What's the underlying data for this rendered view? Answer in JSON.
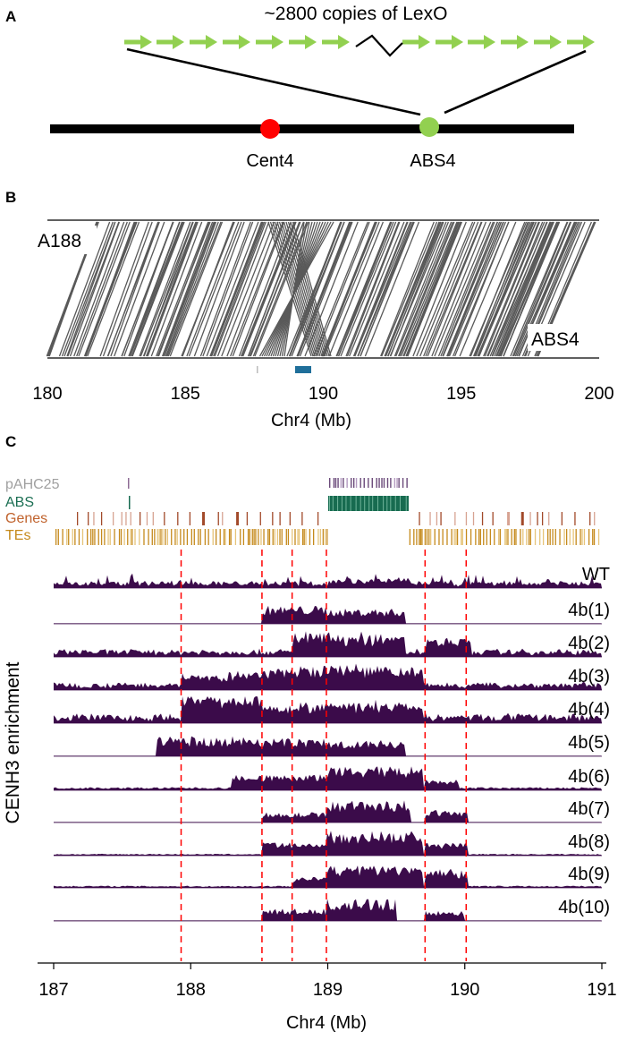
{
  "panel_a": {
    "label": "A",
    "copies_text": "~2800 copies of LexO",
    "cent_label": "Cent4",
    "abs_label": "ABS4",
    "colors": {
      "arrow": "#92d050",
      "cent": "#ff0000",
      "abs": "#92d050",
      "chrom": "#000000"
    }
  },
  "panel_b": {
    "label": "B",
    "top_label": "A188",
    "bottom_label": "ABS4",
    "axis_title": "Chr4 (Mb)",
    "ticks": [
      180,
      185,
      190,
      195,
      200
    ],
    "line_color": "#595959",
    "marker_color": "#1f6f9a"
  },
  "panel_c": {
    "label": "C",
    "tracks": [
      {
        "name": "pAHC25",
        "color": "#a0a0a0"
      },
      {
        "name": "ABS",
        "color": "#1a6e52"
      },
      {
        "name": "Genes",
        "color": "#c0622c"
      },
      {
        "name": "TEs",
        "color": "#c58a1c"
      }
    ],
    "samples": [
      "WT",
      "4b(1)",
      "4b(2)",
      "4b(3)",
      "4b(4)",
      "4b(5)",
      "4b(6)",
      "4b(7)",
      "4b(8)",
      "4b(9)",
      "4b(10)"
    ],
    "ylabel": "CENH3 enrichment",
    "xlabel": "Chr4 (Mb)",
    "ticks": [
      187,
      188,
      189,
      190,
      191
    ],
    "dash_positions_mb": [
      187.93,
      188.52,
      188.74,
      188.99,
      189.71,
      190.01
    ],
    "coverage_color": "#3b0b4a",
    "dash_color": "#ff0000"
  }
}
